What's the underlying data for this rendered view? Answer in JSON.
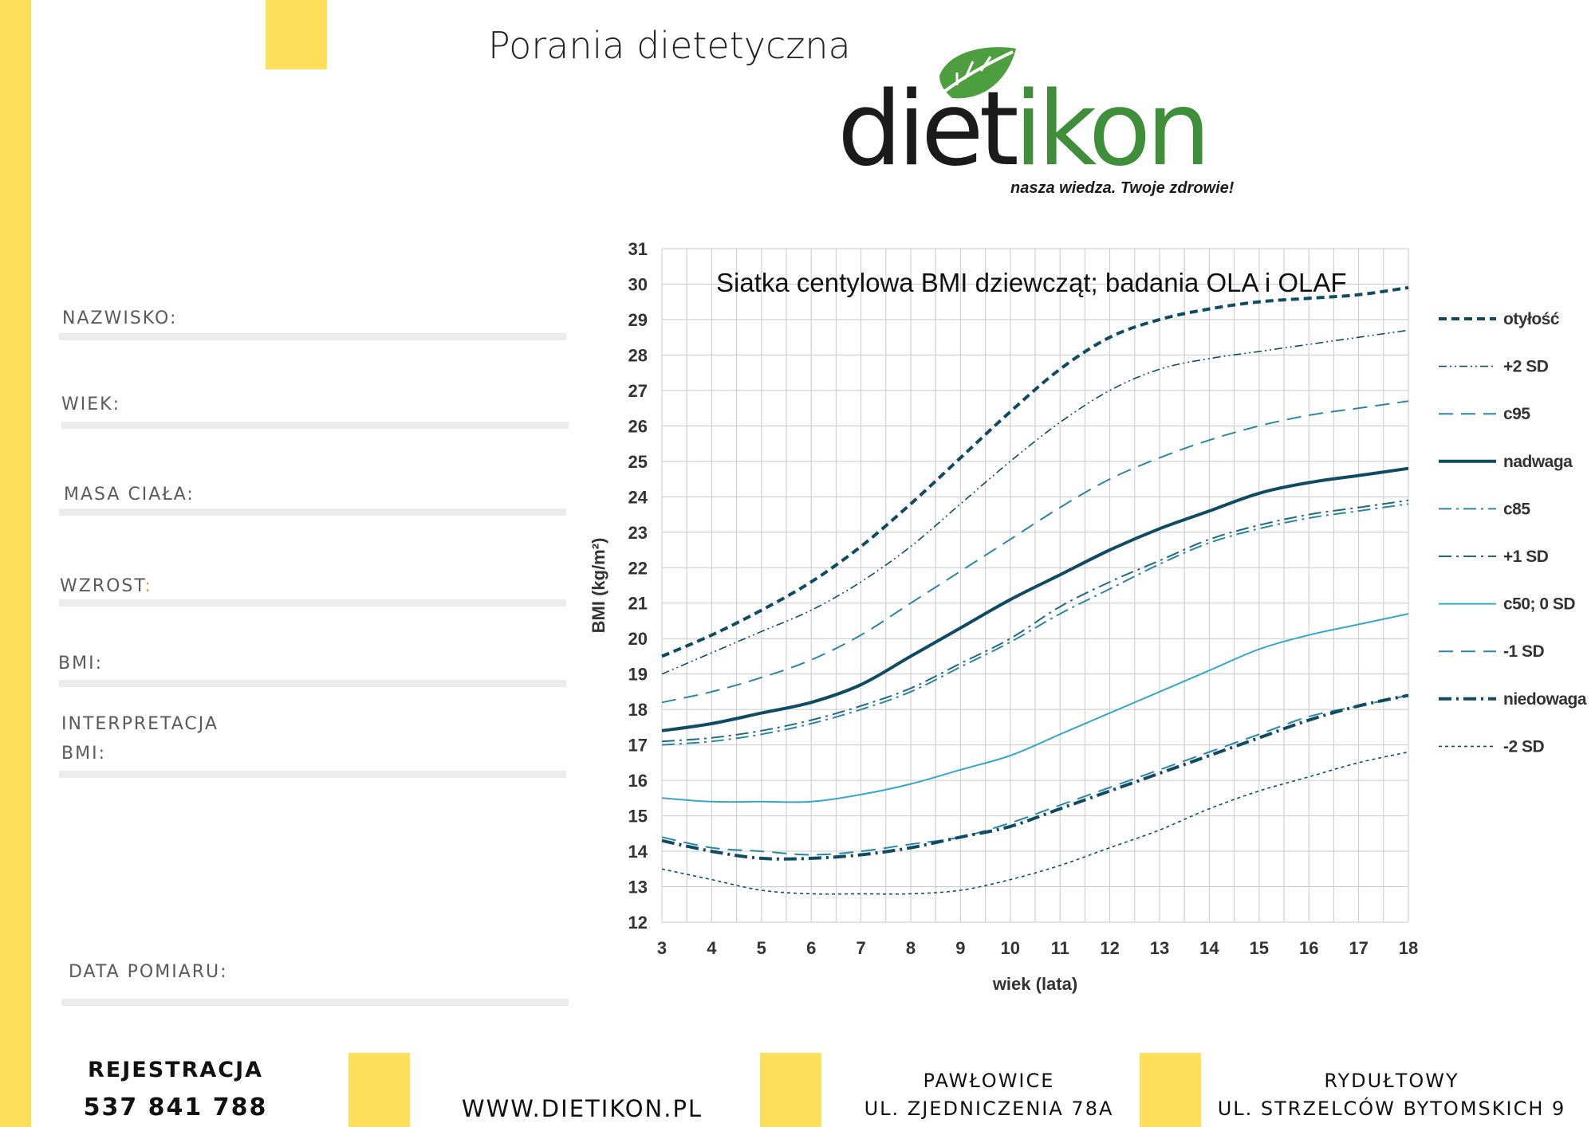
{
  "colors": {
    "accent_yellow": "#ffde59",
    "chart_dark": "#0f4c64",
    "chart_mid": "#2a86a6",
    "chart_light": "#33a7cc",
    "logo_green": "#3f8f3a"
  },
  "header": {
    "title": "Porania dietetyczna"
  },
  "logo": {
    "part1": "diet",
    "part2": "ikon",
    "tagline": "nasza wiedza. Twoje zdrowie!"
  },
  "form": {
    "nazwisko": "NAZWISKO:",
    "wiek": "WIEK:",
    "masa": "MASA CIAŁA:",
    "wzrost": "WZROST",
    "wzrost_colon": ":",
    "bmi": "BMI:",
    "interp1": "INTERPRETACJA",
    "interp2": "BMI:",
    "data_pomiaru": "DATA POMIARU:"
  },
  "footer": {
    "registration_label": "REJESTRACJA",
    "phone": "537 841 788",
    "website": "WWW.DIETIKON.PL",
    "location1_city": "PAWŁOWICE",
    "location1_street": "UL. ZJEDNICZENIA 78A",
    "location2_city": "RYDUŁTOWY",
    "location2_street": "UL. STRZELCÓW BYTOMSKICH 9"
  },
  "chart_data": {
    "type": "line",
    "title": "Siatka centylowa BMI dziewcząt; badania OLA i OLAF",
    "xlabel": "wiek (lata)",
    "ylabel": "BMI (kg/m²)",
    "xlim": [
      3,
      18
    ],
    "ylim": [
      12,
      31
    ],
    "x": [
      3,
      4,
      5,
      6,
      7,
      8,
      9,
      10,
      11,
      12,
      13,
      14,
      15,
      16,
      17,
      18
    ],
    "yticks": [
      12,
      13,
      14,
      15,
      16,
      17,
      18,
      19,
      20,
      21,
      22,
      23,
      24,
      25,
      26,
      27,
      28,
      29,
      30,
      31
    ],
    "grid": true,
    "legend_position": "right",
    "series": [
      {
        "name": "otyłość",
        "style": "dashed",
        "weight": "bold",
        "color": "#0f4c64",
        "values": [
          19.5,
          20.1,
          20.8,
          21.6,
          22.6,
          23.8,
          25.1,
          26.4,
          27.6,
          28.5,
          29.0,
          29.3,
          29.5,
          29.6,
          29.7,
          29.9
        ]
      },
      {
        "name": "+2 SD",
        "style": "dashdotdot",
        "weight": "thin",
        "color": "#0f4c64",
        "values": [
          19.0,
          19.6,
          20.2,
          20.8,
          21.6,
          22.6,
          23.8,
          25.0,
          26.1,
          27.0,
          27.6,
          27.9,
          28.1,
          28.3,
          28.5,
          28.7
        ]
      },
      {
        "name": "c95",
        "style": "longdash",
        "weight": "normal",
        "color": "#2a86a6",
        "values": [
          18.2,
          18.5,
          18.9,
          19.4,
          20.1,
          21.0,
          21.9,
          22.8,
          23.7,
          24.5,
          25.1,
          25.6,
          26.0,
          26.3,
          26.5,
          26.7
        ]
      },
      {
        "name": "nadwaga",
        "style": "solid",
        "weight": "bold",
        "color": "#0f4c64",
        "values": [
          17.4,
          17.6,
          17.9,
          18.2,
          18.7,
          19.5,
          20.3,
          21.1,
          21.8,
          22.5,
          23.1,
          23.6,
          24.1,
          24.4,
          24.6,
          24.8
        ]
      },
      {
        "name": "c85",
        "style": "dashdot",
        "weight": "normal",
        "color": "#2a86a6",
        "values": [
          17.0,
          17.1,
          17.3,
          17.6,
          18.0,
          18.5,
          19.2,
          19.9,
          20.7,
          21.4,
          22.1,
          22.7,
          23.1,
          23.4,
          23.6,
          23.8
        ]
      },
      {
        "name": "+1 SD",
        "style": "dashdot",
        "weight": "normal",
        "color": "#1d6a85",
        "values": [
          17.1,
          17.2,
          17.4,
          17.7,
          18.1,
          18.6,
          19.3,
          20.0,
          20.9,
          21.6,
          22.2,
          22.8,
          23.2,
          23.5,
          23.7,
          23.9
        ]
      },
      {
        "name": "c50; 0 SD",
        "style": "solid",
        "weight": "normal",
        "color": "#33a7cc",
        "values": [
          15.5,
          15.4,
          15.4,
          15.4,
          15.6,
          15.9,
          16.3,
          16.7,
          17.3,
          17.9,
          18.5,
          19.1,
          19.7,
          20.1,
          20.4,
          20.7
        ]
      },
      {
        "name": "-1 SD",
        "style": "longdash",
        "weight": "normal",
        "color": "#2a86a6",
        "values": [
          14.4,
          14.1,
          14.0,
          13.9,
          14.0,
          14.2,
          14.4,
          14.8,
          15.3,
          15.8,
          16.3,
          16.8,
          17.3,
          17.8,
          18.1,
          18.4
        ]
      },
      {
        "name": "niedowaga",
        "style": "dashdot",
        "weight": "bold",
        "color": "#0f4c64",
        "values": [
          14.3,
          14.0,
          13.8,
          13.8,
          13.9,
          14.1,
          14.4,
          14.7,
          15.2,
          15.7,
          16.2,
          16.7,
          17.2,
          17.7,
          18.1,
          18.4
        ]
      },
      {
        "name": "-2 SD",
        "style": "dotted",
        "weight": "thin",
        "color": "#0f4c64",
        "values": [
          13.5,
          13.2,
          12.9,
          12.8,
          12.8,
          12.8,
          12.9,
          13.2,
          13.6,
          14.1,
          14.6,
          15.2,
          15.7,
          16.1,
          16.5,
          16.8
        ]
      }
    ]
  }
}
